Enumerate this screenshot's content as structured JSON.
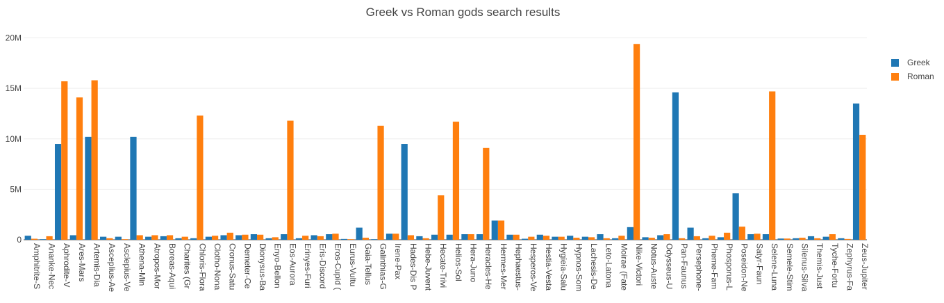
{
  "chart_data": {
    "type": "bar",
    "title": "Greek vs Roman gods search results",
    "xlabel": "",
    "ylabel": "",
    "ylim": [
      0,
      21000000
    ],
    "y_ticks": [
      0,
      5000000,
      10000000,
      15000000,
      20000000
    ],
    "y_tick_labels": [
      "0",
      "5M",
      "10M",
      "15M",
      "20M"
    ],
    "grid": true,
    "legend_position": "top-right",
    "categories": [
      "Amphitrite-S",
      "Ananke-Nec",
      "Aphrodite-V",
      "Ares-Mars",
      "Artemis-Dia",
      "Asceplius-Ae",
      "Asclepius-Ve",
      "Athena-Min",
      "Atropos-Mor",
      "Boreas-Aqui",
      "Charites (Gr",
      "Chloris-Flora",
      "Clotho-Nona",
      "Cronus-Satu",
      "Demeter-Ce",
      "Dionysus-Ba",
      "Enyo-Bellon",
      "Eos-Aurora",
      "Erinyes-Furi",
      "Eris-Discord",
      "Eros-Cupid (",
      "Eurus-Vultu",
      "Gaia-Tellus",
      "Galinthias-G",
      "Irene-Pax",
      "Hades-Dis P",
      "Hebe-Juvent",
      "Hecate-Trivi",
      "Helios-Sol",
      "Hera-Juno",
      "Heracles-He",
      "Hermes-Mer",
      "Hephaestus-",
      "Hesperos-Ve",
      "Hestia-Vesta",
      "Hygieia-Salu",
      "Hypnos-Som",
      "Lachesis-De",
      "Leto-Latona",
      "Moirae (Fate",
      "Nike-Victori",
      "Notus-Auste",
      "Odysseus-U",
      "Pan-Faunus",
      "Persephone-",
      "Pheme-Fam",
      "Phosporus-L",
      "Poseidon-Ne",
      "Satyr-Faun",
      "Selene-Luna",
      "Semele-Stim",
      "Silenus-Silva",
      "Themis-Just",
      "Tyche-Fortu",
      "Zephyrus-Fa",
      "Zeus-Jupiter"
    ],
    "series": [
      {
        "name": "Greek",
        "color": "#1f77b4",
        "values": [
          400000,
          60000,
          9500000,
          450000,
          10200000,
          300000,
          300000,
          10200000,
          300000,
          350000,
          150000,
          150000,
          300000,
          450000,
          450000,
          550000,
          150000,
          550000,
          150000,
          450000,
          550000,
          80000,
          1200000,
          60000,
          600000,
          9500000,
          350000,
          500000,
          500000,
          550000,
          550000,
          1900000,
          500000,
          100000,
          500000,
          300000,
          400000,
          300000,
          550000,
          150000,
          1250000,
          250000,
          450000,
          14600000,
          1200000,
          150000,
          250000,
          4600000,
          550000,
          550000,
          120000,
          150000,
          350000,
          300000,
          150000,
          13500000
        ]
      },
      {
        "name": "Roman",
        "color": "#ff7f0e",
        "values": [
          100000,
          350000,
          15700000,
          14100000,
          15800000,
          150000,
          60000,
          450000,
          450000,
          450000,
          300000,
          12300000,
          400000,
          700000,
          500000,
          500000,
          250000,
          11800000,
          400000,
          350000,
          600000,
          60000,
          200000,
          11300000,
          600000,
          450000,
          150000,
          4400000,
          11700000,
          550000,
          9100000,
          1900000,
          500000,
          300000,
          400000,
          300000,
          200000,
          250000,
          150000,
          400000,
          19400000,
          200000,
          550000,
          150000,
          350000,
          400000,
          700000,
          1300000,
          600000,
          14700000,
          120000,
          200000,
          150000,
          550000,
          80000,
          10400000
        ]
      }
    ]
  }
}
